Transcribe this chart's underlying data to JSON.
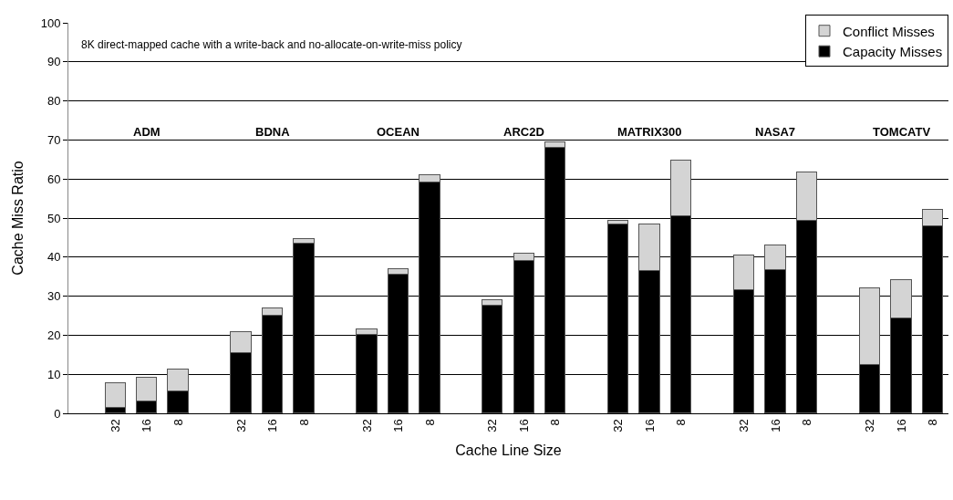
{
  "chart_data": {
    "type": "bar",
    "stacked": true,
    "xlabel": "Cache Line Size",
    "ylabel": "Cache Miss Ratio",
    "categories": [
      "32",
      "16",
      "8",
      "32",
      "16",
      "8",
      "32",
      "16",
      "8",
      "32",
      "16",
      "8",
      "32",
      "16",
      "8",
      "32",
      "16",
      "8",
      "32",
      "16",
      "8"
    ],
    "series": [
      {
        "name": "Capacity Misses",
        "color": "#000000",
        "values": [
          1.5,
          3.0,
          5.7,
          15.5,
          25,
          43.5,
          20,
          35.5,
          59,
          27.5,
          39,
          68,
          48.3,
          36.5,
          50.5,
          31.6,
          36.8,
          49.3,
          12.3,
          24.3,
          48
        ]
      },
      {
        "name": "Conflict Misses",
        "color": "#d4d4d4",
        "values": [
          6.2,
          6.0,
          5.5,
          5.2,
          1.8,
          1.1,
          1.5,
          1.5,
          2,
          1.5,
          2,
          1.5,
          1,
          11.8,
          14.3,
          8.9,
          6.1,
          12.4,
          19.7,
          9.7,
          4
        ]
      }
    ],
    "ylim": [
      0,
      100
    ],
    "yticks": [
      0,
      10,
      20,
      30,
      40,
      50,
      60,
      70,
      80,
      90,
      100
    ],
    "grid": "y",
    "legend": "top right",
    "annotations": [
      "8K direct-mapped cache with a write-back and no-allocate-on-write-miss policy",
      "ADM",
      "BDNA",
      "OCEAN",
      "ARC2D",
      "MATRIX300",
      "NASA7",
      "TOMCATV"
    ]
  }
}
